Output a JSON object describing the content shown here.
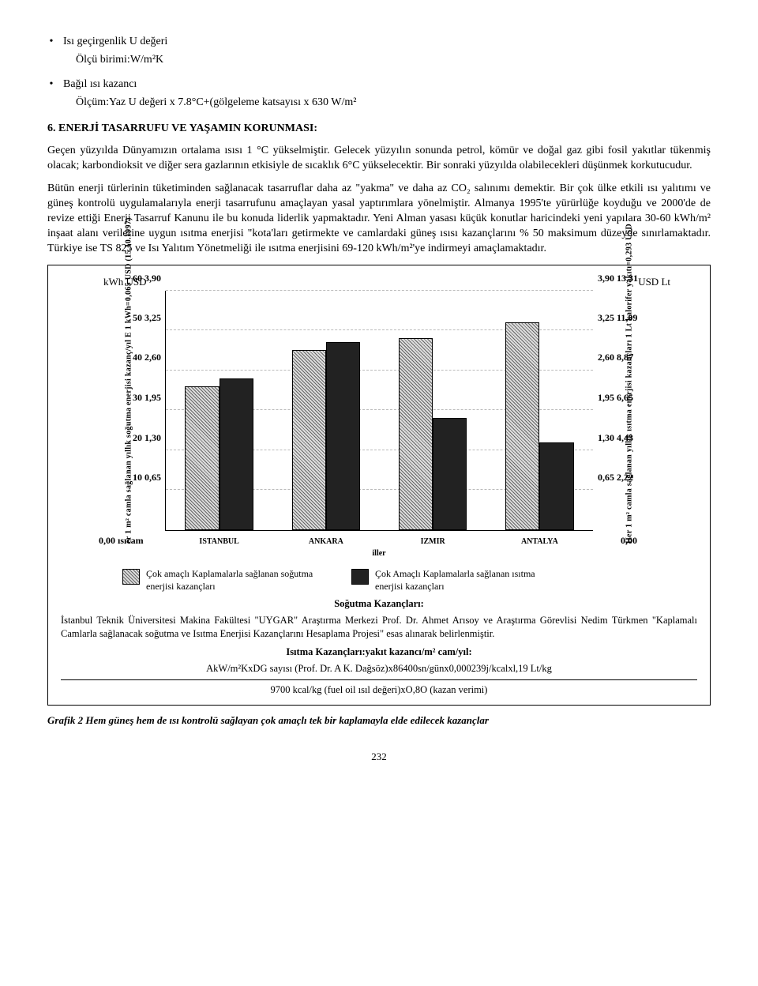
{
  "bullets": {
    "b1": "Isı geçirgenlik U değeri",
    "b1_sub": "Ölçü birimi:W/m²K",
    "b2": "Bağıl ısı kazancı",
    "b2_sub": "Ölçüm:Yaz U değeri x 7.8°C+(gölgeleme katsayısı x 630 W/m²"
  },
  "section_title": "6. ENERJİ TASARRUFU VE YAŞAMIN KORUNMASI:",
  "para1": "Geçen yüzyılda Dünyamızın ortalama ısısı 1 °C yükselmiştir. Gelecek yüzyılın sonunda petrol, kömür ve doğal gaz gibi fosil yakıtlar tükenmiş olacak; karbondioksit ve diğer sera gazlarının etkisiyle de sıcaklık 6°C yükselecektir. Bir sonraki yüzyılda olabilecekleri düşünmek korkutucudur.",
  "para2": "Bütün enerji türlerinin tüketiminden sağlanacak tasarruflar daha az \"yakma\" ve daha az CO₂ salınımı demektir. Bir çok ülke etkili ısı yalıtımı ve güneş kontrolü uygulamalarıyla enerji tasarrufunu amaçlayan yasal yaptırımlara yönelmiştir. Almanya 1995'te yürürlüğe koyduğu ve 2000'de de revize ettiği Enerji Tasarruf Kanunu ile bu konuda liderlik yapmaktadır. Yeni Alman yasası küçük konutlar haricindeki yeni yapılara 30-60 kWh/m² inşaat alanı verilerine uygun ısıtma enerjisi \"kota'ları getirmekte ve camlardaki güneş ısısı kazançlarını % 50 maksimum düzeyde sınırlamaktadır. Türkiye ise TS 825 ve Isı Yalıtım Yönetmeliği ile ısıtma enerjisini 69-120 kWh/m²'ye indirmeyi amaçlamaktadır.",
  "chart": {
    "left_header": "kWh   USD",
    "right_header": "USD   Lt",
    "y_left_label": "er 1 m² camla sağlanan yıllık   soğutma enerjisi kazanç/yıl E   1 kWh=0,065 USD (15.10.1997)",
    "y_right_label": "Her 1 m² camla sağlanan yıllık ısıtma enerjisi kazançları   1 Lt kalorifer yakıtı=0,293 USD",
    "left_ticks": [
      {
        "kwh": "60",
        "usd": "3,90",
        "pct": 100
      },
      {
        "kwh": "50",
        "usd": "3,25",
        "pct": 83.3
      },
      {
        "kwh": "40",
        "usd": "2,60",
        "pct": 66.7
      },
      {
        "kwh": "30",
        "usd": "1,95",
        "pct": 50
      },
      {
        "kwh": "20",
        "usd": "1,30",
        "pct": 33.3
      },
      {
        "kwh": "10",
        "usd": "0,65",
        "pct": 16.7
      }
    ],
    "right_ticks": [
      {
        "usd": "3,90",
        "lt": "13,31",
        "pct": 100
      },
      {
        "usd": "3,25",
        "lt": "11,09",
        "pct": 83.3
      },
      {
        "usd": "2,60",
        "lt": "8,87",
        "pct": 66.7
      },
      {
        "usd": "1,95",
        "lt": "6,65",
        "pct": 50
      },
      {
        "usd": "1,30",
        "lt": "4,43",
        "pct": 33.3
      },
      {
        "usd": "0,65",
        "lt": "2,22",
        "pct": 16.7
      }
    ],
    "categories": [
      "ISTANBUL",
      "ANKARA",
      "IZMIR",
      "ANTALYA"
    ],
    "series_a": {
      "label": "Çok amaçlı Kaplamalarla sağlanan soğutma enerjisi kazançları",
      "pattern": "pattern-a",
      "values": [
        36,
        45,
        48,
        52
      ]
    },
    "series_b": {
      "label": "Çok Amaçlı Kaplamalarla sağlanan ısıtma enerjisi kazançları",
      "pattern": "pattern-b",
      "values": [
        38,
        47,
        28,
        22
      ]
    },
    "zero_left": "0,00 ısıcam",
    "zero_right": "0,00",
    "x_sub": "iller",
    "bar_colors": {
      "a": "#c8c8c8",
      "b": "#3a3a3a"
    },
    "ymax": 60
  },
  "footer": {
    "t1": "Soğutma Kazançları:",
    "p1": "İstanbul Teknik Üniversitesi Makina Fakültesi \"UYGAR\" Araştırma Merkezi Prof. Dr. Ahmet Arısoy ve Araştırma Görevlisi Nedim Türkmen \"Kaplamalı Camlarla sağlanacak soğutma ve Isıtma Enerjisi Kazançlarını Hesaplama Projesi\" esas alınarak belirlenmiştir.",
    "t2": "Isıtma Kazançları:yakıt kazancı/m² cam/yıl:",
    "p2": "AkW/m²KxDG sayısı (Prof. Dr. A K. Dağsöz)x86400sn/günx0,000239j/kcalxl,19 Lt/kg",
    "p3": "9700 kcal/kg (fuel oil ısıl değeri)xO,8O (kazan verimi)"
  },
  "caption": "Grafik 2 Hem güneş hem de ısı kontrolü sağlayan çok amaçlı tek bir kaplamayla elde edilecek kazançlar",
  "page_number": "232"
}
